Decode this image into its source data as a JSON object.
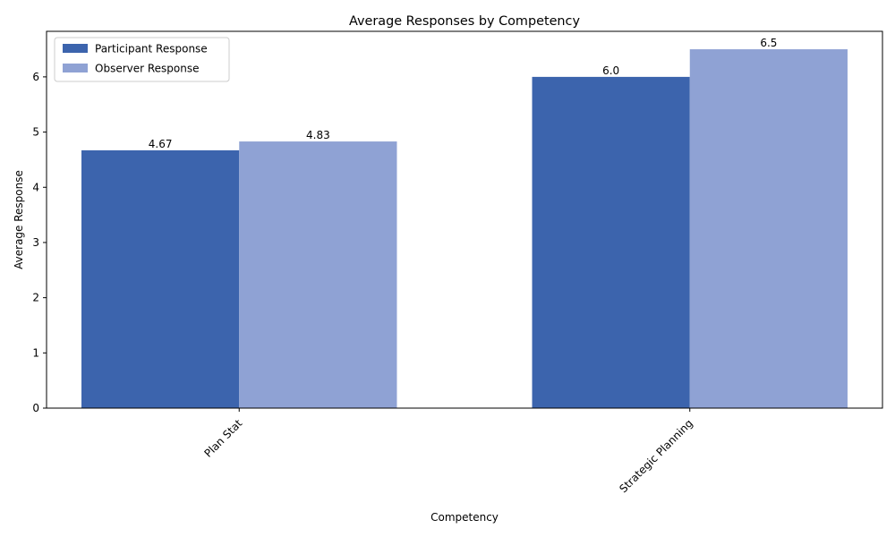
{
  "chart_data": {
    "type": "bar",
    "title": "Average Responses by Competency",
    "xlabel": "Competency",
    "ylabel": "Average Response",
    "categories": [
      "Plan Stat",
      "Strategic Planning"
    ],
    "series": [
      {
        "name": "Participant Response",
        "values": [
          4.67,
          6.0
        ],
        "labels": [
          "4.67",
          "6.0"
        ],
        "color": "#3c64ad"
      },
      {
        "name": "Observer Response",
        "values": [
          4.83,
          6.5
        ],
        "labels": [
          "4.83",
          "6.5"
        ],
        "color": "#8fa2d4"
      }
    ],
    "ylim": [
      0,
      6.825
    ],
    "yticks": [
      0,
      1,
      2,
      3,
      4,
      5,
      6
    ],
    "ytick_labels": [
      "0",
      "1",
      "2",
      "3",
      "4",
      "5",
      "6"
    ],
    "grid": false,
    "legend_position": "top-left"
  }
}
